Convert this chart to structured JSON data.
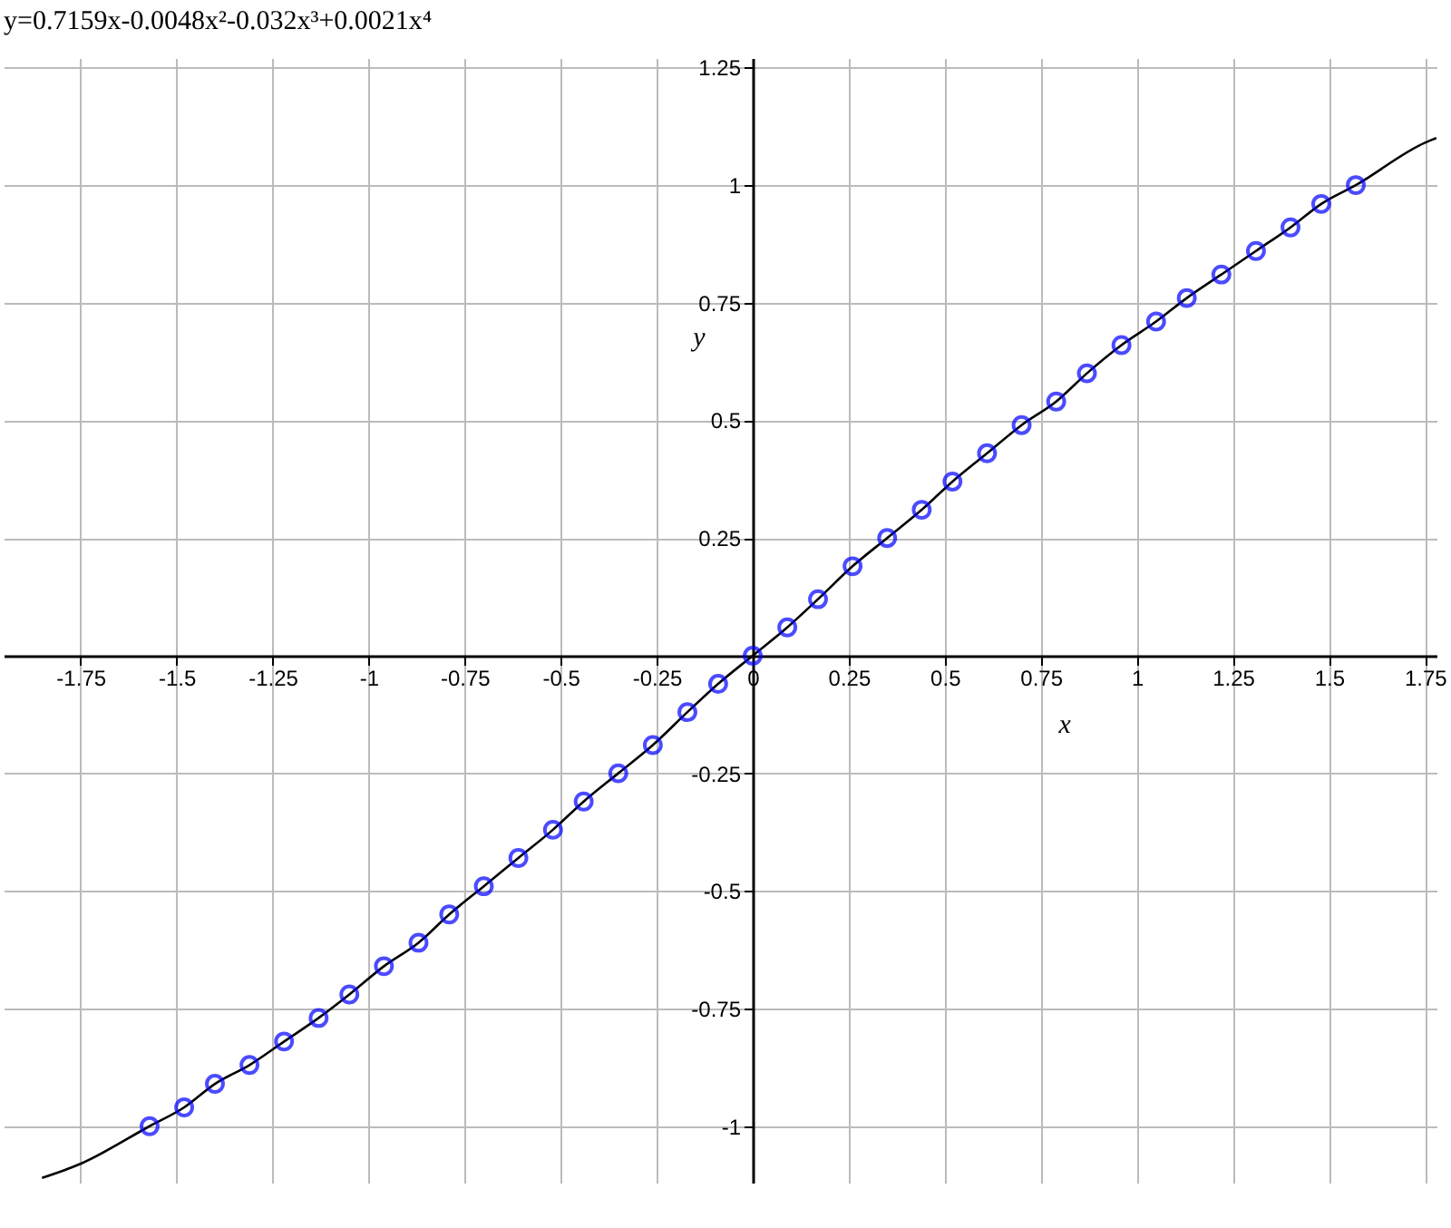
{
  "chart_data": {
    "type": "line",
    "title": "y=0.7159x-0.0048x²-0.032x³+0.0021x⁴",
    "xlabel": "x",
    "ylabel": "y",
    "xlim": [
      -1.95,
      1.78
    ],
    "ylim": [
      -1.12,
      1.27
    ],
    "xticks": [
      -1.75,
      -1.5,
      -1.25,
      -1,
      -0.75,
      -0.5,
      -0.25,
      0,
      0.25,
      0.5,
      0.75,
      1,
      1.25,
      1.5,
      1.75
    ],
    "yticks": [
      -1,
      -0.75,
      -0.5,
      -0.25,
      0.25,
      0.5,
      0.75,
      1,
      1.25
    ],
    "grid": true,
    "series": [
      {
        "type": "line",
        "color": "#000000",
        "marker": "none",
        "x": [
          -1.85,
          -1.75,
          -1.57,
          -1.48,
          -1.4,
          -1.31,
          -1.22,
          -1.13,
          -1.05,
          -0.96,
          -0.87,
          -0.79,
          -0.7,
          -0.61,
          -0.52,
          -0.44,
          -0.35,
          -0.26,
          -0.17,
          -0.09,
          0,
          0.09,
          0.17,
          0.26,
          0.35,
          0.44,
          0.52,
          0.61,
          0.7,
          0.79,
          0.87,
          0.96,
          1.05,
          1.13,
          1.22,
          1.31,
          1.4,
          1.48,
          1.57,
          1.75,
          1.78
        ],
        "values": [
          -1.11,
          -1.08,
          -1,
          -0.96,
          -0.91,
          -0.87,
          -0.82,
          -0.77,
          -0.72,
          -0.66,
          -0.61,
          -0.55,
          -0.49,
          -0.43,
          -0.37,
          -0.31,
          -0.25,
          -0.19,
          -0.12,
          -0.06,
          0,
          0.06,
          0.12,
          0.19,
          0.25,
          0.31,
          0.37,
          0.43,
          0.49,
          0.54,
          0.6,
          0.66,
          0.71,
          0.76,
          0.81,
          0.86,
          0.91,
          0.96,
          1,
          1.09,
          1.1
        ]
      },
      {
        "type": "scatter",
        "color": "#0000ff",
        "marker": "circle",
        "x": [
          -1.57,
          -1.48,
          -1.4,
          -1.31,
          -1.22,
          -1.13,
          -1.05,
          -0.96,
          -0.87,
          -0.79,
          -0.7,
          -0.61,
          -0.52,
          -0.44,
          -0.35,
          -0.26,
          -0.17,
          -0.09,
          0,
          0.09,
          0.17,
          0.26,
          0.35,
          0.44,
          0.52,
          0.61,
          0.7,
          0.79,
          0.87,
          0.96,
          1.05,
          1.13,
          1.22,
          1.31,
          1.4,
          1.48,
          1.57
        ],
        "values": [
          -1,
          -0.96,
          -0.91,
          -0.87,
          -0.82,
          -0.77,
          -0.72,
          -0.66,
          -0.61,
          -0.55,
          -0.49,
          -0.43,
          -0.37,
          -0.31,
          -0.25,
          -0.19,
          -0.12,
          -0.06,
          0,
          0.06,
          0.12,
          0.19,
          0.25,
          0.31,
          0.37,
          0.43,
          0.49,
          0.54,
          0.6,
          0.66,
          0.71,
          0.76,
          0.81,
          0.86,
          0.91,
          0.96,
          1
        ]
      }
    ]
  }
}
